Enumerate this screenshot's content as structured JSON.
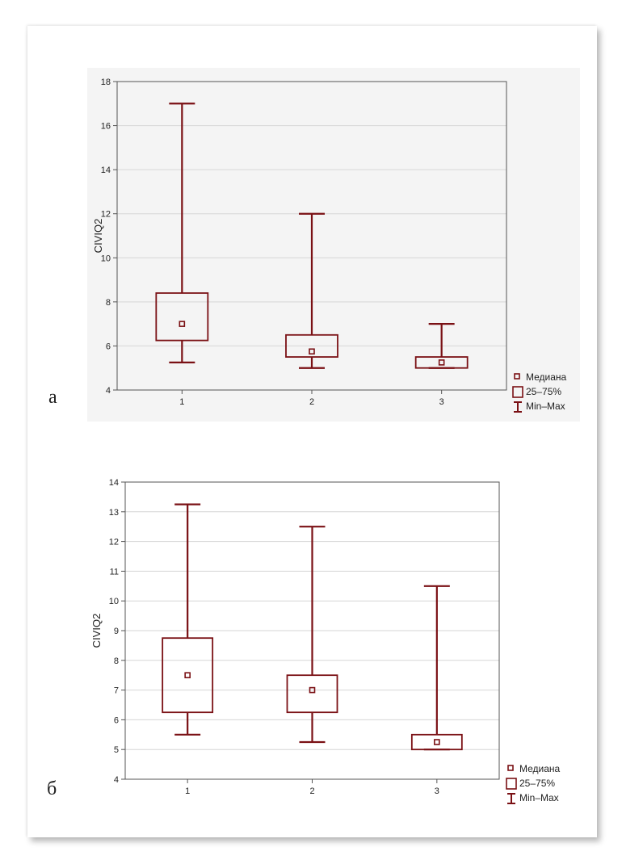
{
  "colors": {
    "series": "#7a1014",
    "gridline": "#d6d6d6",
    "axis": "#555555"
  },
  "charts": [
    {
      "panel_label": "а",
      "legend": [
        {
          "icon": "median-marker-icon",
          "label": "Медиана"
        },
        {
          "icon": "iqr-box-icon",
          "label": "25–75%"
        },
        {
          "icon": "range-whisker-icon",
          "label": "Min–Max"
        }
      ]
    },
    {
      "panel_label": "б",
      "legend": [
        {
          "icon": "median-marker-icon",
          "label": "Медиана"
        },
        {
          "icon": "iqr-box-icon",
          "label": "25–75%"
        },
        {
          "icon": "range-whisker-icon",
          "label": "Min–Max"
        }
      ]
    }
  ],
  "chart_data": [
    {
      "type": "boxplot",
      "title": "",
      "xlabel": "",
      "ylabel": "CIVIQ2",
      "categories": [
        "1",
        "2",
        "3"
      ],
      "ylim": [
        4,
        18
      ],
      "yticks": [
        4,
        6,
        8,
        10,
        12,
        14,
        16,
        18
      ],
      "grid": true,
      "legend_position": "bottom-right outside",
      "boxes": [
        {
          "category": "1",
          "min": 5.25,
          "q1": 6.25,
          "median": 7.0,
          "q3": 8.4,
          "max": 17.0
        },
        {
          "category": "2",
          "min": 5.0,
          "q1": 5.5,
          "median": 5.75,
          "q3": 6.5,
          "max": 12.0
        },
        {
          "category": "3",
          "min": 5.0,
          "q1": 5.0,
          "median": 5.25,
          "q3": 5.5,
          "max": 7.0
        }
      ]
    },
    {
      "type": "boxplot",
      "title": "",
      "xlabel": "",
      "ylabel": "CIVIQ2",
      "categories": [
        "1",
        "2",
        "3"
      ],
      "ylim": [
        4,
        14
      ],
      "yticks": [
        4,
        5,
        6,
        7,
        8,
        9,
        10,
        11,
        12,
        13,
        14
      ],
      "grid": true,
      "legend_position": "bottom-right outside",
      "boxes": [
        {
          "category": "1",
          "min": 5.5,
          "q1": 6.25,
          "median": 7.5,
          "q3": 8.75,
          "max": 13.25
        },
        {
          "category": "2",
          "min": 5.25,
          "q1": 6.25,
          "median": 7.0,
          "q3": 7.5,
          "max": 12.5
        },
        {
          "category": "3",
          "min": 5.0,
          "q1": 5.0,
          "median": 5.25,
          "q3": 5.5,
          "max": 10.5
        }
      ]
    }
  ]
}
